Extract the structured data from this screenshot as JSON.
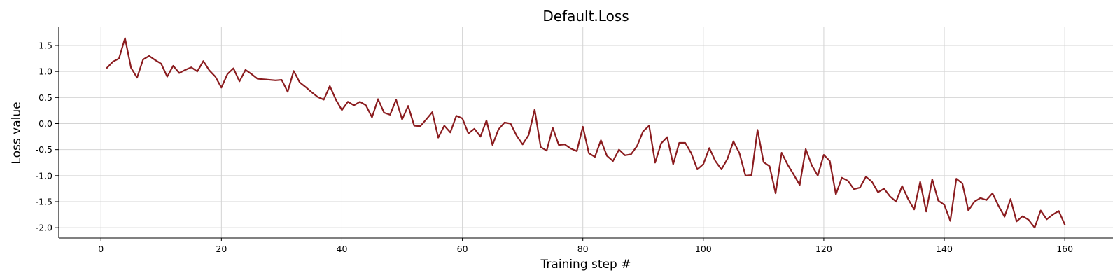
{
  "chart_data": {
    "type": "line",
    "title": "Default.Loss",
    "xlabel": "Training step #",
    "ylabel": "Loss value",
    "xlim": [
      -7,
      168
    ],
    "ylim": [
      -2.2,
      1.85
    ],
    "xticks": [
      0,
      20,
      40,
      60,
      80,
      100,
      120,
      140,
      160
    ],
    "yticks": [
      -2.0,
      -1.5,
      -1.0,
      -0.5,
      0.0,
      0.5,
      1.0,
      1.5
    ],
    "grid": true,
    "legend": "none",
    "color": "#8b1c1f",
    "series": [
      {
        "x": [
          1,
          2,
          3,
          4,
          5,
          6,
          7,
          8,
          9,
          10,
          11,
          12,
          13,
          14,
          15,
          16,
          17,
          18,
          19,
          20,
          21,
          22,
          23,
          24,
          25,
          26,
          27,
          28,
          29,
          30,
          31,
          32,
          33,
          34,
          35,
          36,
          37,
          38,
          39,
          40,
          41,
          42,
          43,
          44,
          45,
          46,
          47,
          48,
          49,
          50,
          51,
          52,
          53,
          54,
          55,
          56,
          57,
          58,
          59,
          60,
          61,
          62,
          63,
          64,
          65,
          66,
          67,
          68,
          69,
          70,
          71,
          72,
          73,
          74,
          75,
          76,
          77,
          78,
          79,
          80,
          81,
          82,
          83,
          84,
          85,
          86,
          87,
          88,
          89,
          90,
          91,
          92,
          93,
          94,
          95,
          96,
          97,
          98,
          99,
          100,
          101,
          102,
          103,
          104,
          105,
          106,
          107,
          108,
          109,
          110,
          111,
          112,
          113,
          114,
          115,
          116,
          117,
          118,
          119,
          120,
          121,
          122,
          123,
          124,
          125,
          126,
          127,
          128,
          129,
          130,
          131,
          132,
          133,
          134,
          135,
          136,
          137,
          138,
          139,
          140,
          141,
          142,
          143,
          144,
          145,
          146,
          147,
          148,
          149,
          150,
          151,
          152,
          153,
          154,
          155,
          156,
          157,
          158,
          159,
          160
        ],
        "values": [
          1.07,
          1.19,
          1.25,
          1.64,
          1.07,
          0.88,
          1.23,
          1.3,
          1.22,
          1.15,
          0.9,
          1.11,
          0.97,
          1.03,
          1.08,
          1.0,
          1.2,
          1.02,
          0.9,
          0.69,
          0.95,
          1.06,
          0.81,
          1.03,
          0.95,
          0.86,
          0.85,
          0.84,
          0.83,
          0.84,
          0.61,
          1.01,
          0.79,
          0.7,
          0.6,
          0.51,
          0.46,
          0.72,
          0.46,
          0.26,
          0.42,
          0.35,
          0.42,
          0.35,
          0.12,
          0.47,
          0.21,
          0.17,
          0.46,
          0.08,
          0.34,
          -0.04,
          -0.05,
          0.08,
          0.22,
          -0.27,
          -0.04,
          -0.17,
          0.15,
          0.1,
          -0.19,
          -0.1,
          -0.25,
          0.06,
          -0.41,
          -0.11,
          0.02,
          0.0,
          -0.23,
          -0.4,
          -0.22,
          0.27,
          -0.45,
          -0.52,
          -0.08,
          -0.41,
          -0.4,
          -0.48,
          -0.53,
          -0.06,
          -0.57,
          -0.64,
          -0.32,
          -0.62,
          -0.72,
          -0.5,
          -0.61,
          -0.59,
          -0.43,
          -0.15,
          -0.04,
          -0.75,
          -0.38,
          -0.26,
          -0.78,
          -0.37,
          -0.37,
          -0.57,
          -0.88,
          -0.78,
          -0.47,
          -0.72,
          -0.88,
          -0.68,
          -0.34,
          -0.57,
          -1.0,
          -0.99,
          -0.12,
          -0.74,
          -0.82,
          -1.34,
          -0.56,
          -0.79,
          -0.98,
          -1.18,
          -0.49,
          -0.8,
          -1.0,
          -0.6,
          -0.72,
          -1.36,
          -1.04,
          -1.1,
          -1.26,
          -1.23,
          -1.02,
          -1.12,
          -1.32,
          -1.25,
          -1.4,
          -1.5,
          -1.2,
          -1.45,
          -1.65,
          -1.12,
          -1.69,
          -1.07,
          -1.48,
          -1.56,
          -1.87,
          -1.06,
          -1.15,
          -1.67,
          -1.5,
          -1.43,
          -1.47,
          -1.34,
          -1.58,
          -1.79,
          -1.45,
          -1.88,
          -1.78,
          -1.85,
          -2.0,
          -1.67,
          -1.84,
          -1.75,
          -1.68,
          -1.94
        ]
      }
    ]
  }
}
